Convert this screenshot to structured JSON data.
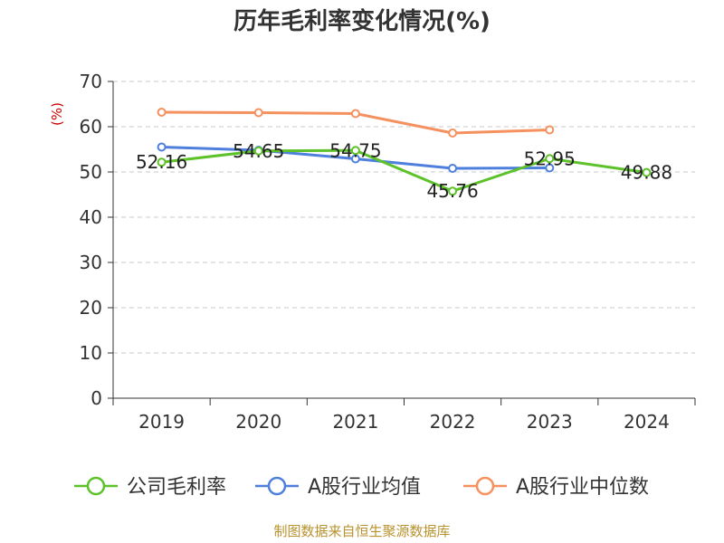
{
  "chart_data": {
    "type": "line",
    "title": "历年毛利率变化情况(%)",
    "ylabel": "(%)",
    "ylim": [
      0,
      70
    ],
    "yticks": [
      0,
      10,
      20,
      30,
      40,
      50,
      60,
      70
    ],
    "categories": [
      "2019",
      "2020",
      "2021",
      "2022",
      "2023",
      "2024"
    ],
    "grid": true,
    "legend_position": "bottom",
    "series": [
      {
        "name": "公司毛利率",
        "color": "#5dc22a",
        "values": [
          52.16,
          54.65,
          54.75,
          45.76,
          52.95,
          49.88
        ],
        "labels": [
          "52.16",
          "54.65",
          "54.75",
          "45.76",
          "52.95",
          "49.88"
        ]
      },
      {
        "name": "A股行业均值",
        "color": "#4e7fdc",
        "values": [
          55.5,
          54.8,
          52.9,
          50.8,
          50.9,
          null
        ]
      },
      {
        "name": "A股行业中位数",
        "color": "#f5915e",
        "values": [
          63.2,
          63.1,
          62.9,
          58.6,
          59.3,
          null
        ]
      }
    ],
    "source": "制图数据来自恒生聚源数据库"
  }
}
